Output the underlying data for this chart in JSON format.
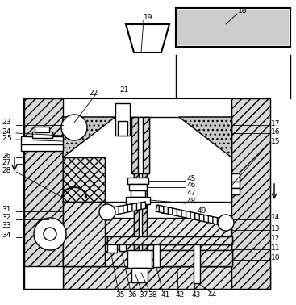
{
  "bg_color": "#ffffff",
  "lc": "#000000",
  "lw": 1.0,
  "lw2": 1.5
}
